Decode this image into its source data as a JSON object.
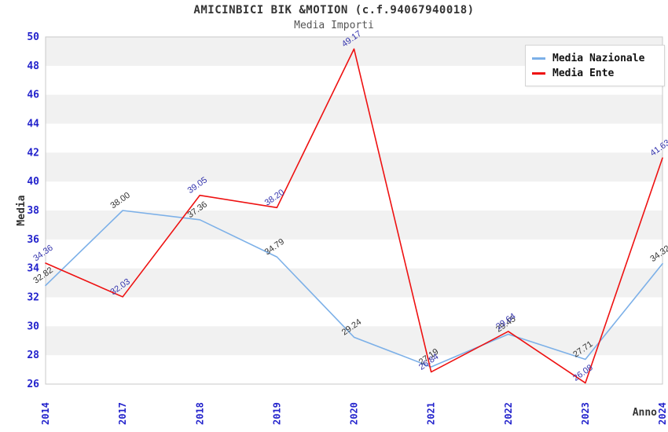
{
  "title": "AMICINBICI BIK &MOTION (c.f.94067940018)",
  "subtitle": "Media Importi",
  "chart_data": {
    "type": "line",
    "categories": [
      "2014",
      "2017",
      "2018",
      "2019",
      "2020",
      "2021",
      "2022",
      "2023",
      "2024"
    ],
    "series": [
      {
        "name": "Media Nazionale",
        "color": "#7cb0e8",
        "label_color": "#333333",
        "values": [
          32.82,
          38.0,
          37.36,
          34.79,
          29.24,
          27.19,
          29.45,
          27.71,
          34.32
        ]
      },
      {
        "name": "Media Ente",
        "color": "#ee1111",
        "label_color": "#3434ad",
        "values": [
          34.36,
          32.03,
          39.05,
          38.2,
          49.17,
          26.84,
          29.64,
          26.08,
          41.63
        ]
      }
    ],
    "xlabel": "Anno",
    "ylabel": "Media",
    "ylim": [
      26,
      50
    ],
    "ytick_step": 2,
    "yticks": [
      26,
      28,
      30,
      32,
      34,
      36,
      38,
      40,
      42,
      44,
      46,
      48,
      50
    ],
    "legend_position": "top-right",
    "grid": "horizontal-bands",
    "band_color": "#f1f1f1",
    "plot_border_color": "#c9c9c9",
    "axis_tick_color": "#2323cc",
    "axis_title_color": "#333333",
    "label_decimals": 2
  }
}
